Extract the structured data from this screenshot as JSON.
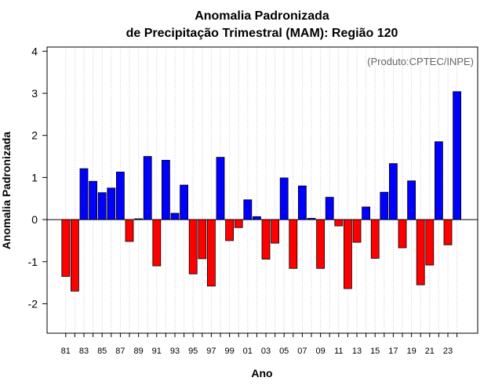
{
  "chart_data": {
    "type": "bar",
    "title_line1": "Anomalia Padronizada",
    "title_line2": "de Precipitação Trimestral (MAM): Região 120",
    "xlabel": "Ano",
    "ylabel": "Anomalia Padronizada",
    "annotation": "(Produto:CPTEC/INPE)",
    "ylim": [
      -2.7,
      4.1
    ],
    "yticks": [
      4,
      3,
      2,
      1,
      0,
      -1,
      -2
    ],
    "ytick_labels": [
      "4",
      "3",
      "2",
      "1",
      "0",
      "-1",
      "-2"
    ],
    "x": [
      1981,
      1982,
      1983,
      1984,
      1985,
      1986,
      1987,
      1988,
      1989,
      1990,
      1991,
      1992,
      1993,
      1994,
      1995,
      1996,
      1997,
      1998,
      1999,
      2000,
      2001,
      2002,
      2003,
      2004,
      2005,
      2006,
      2007,
      2008,
      2009,
      2010,
      2011,
      2012,
      2013,
      2014,
      2015,
      2016,
      2017,
      2018,
      2019,
      2020,
      2021,
      2022,
      2023,
      2024
    ],
    "xtick_labels": [
      "81",
      "83",
      "85",
      "87",
      "89",
      "91",
      "93",
      "95",
      "97",
      "99",
      "01",
      "03",
      "05",
      "07",
      "09",
      "11",
      "13",
      "15",
      "17",
      "19",
      "21",
      "23"
    ],
    "values": [
      -1.35,
      -1.7,
      1.21,
      0.91,
      0.64,
      0.75,
      1.13,
      -0.52,
      0.02,
      1.5,
      -1.1,
      1.41,
      0.15,
      0.82,
      -1.29,
      -0.93,
      -1.58,
      1.48,
      -0.5,
      -0.19,
      0.47,
      0.07,
      -0.94,
      -0.56,
      0.99,
      -1.16,
      0.8,
      0.03,
      -1.16,
      0.53,
      -0.15,
      -1.64,
      -0.54,
      0.3,
      -0.92,
      0.65,
      1.33,
      -0.67,
      0.92,
      -1.55,
      -1.08,
      1.85,
      -0.6,
      3.04
    ],
    "positive_color": "#0000ff",
    "negative_color": "#ff0000",
    "grid": "vertical dotted",
    "legend": "none"
  }
}
